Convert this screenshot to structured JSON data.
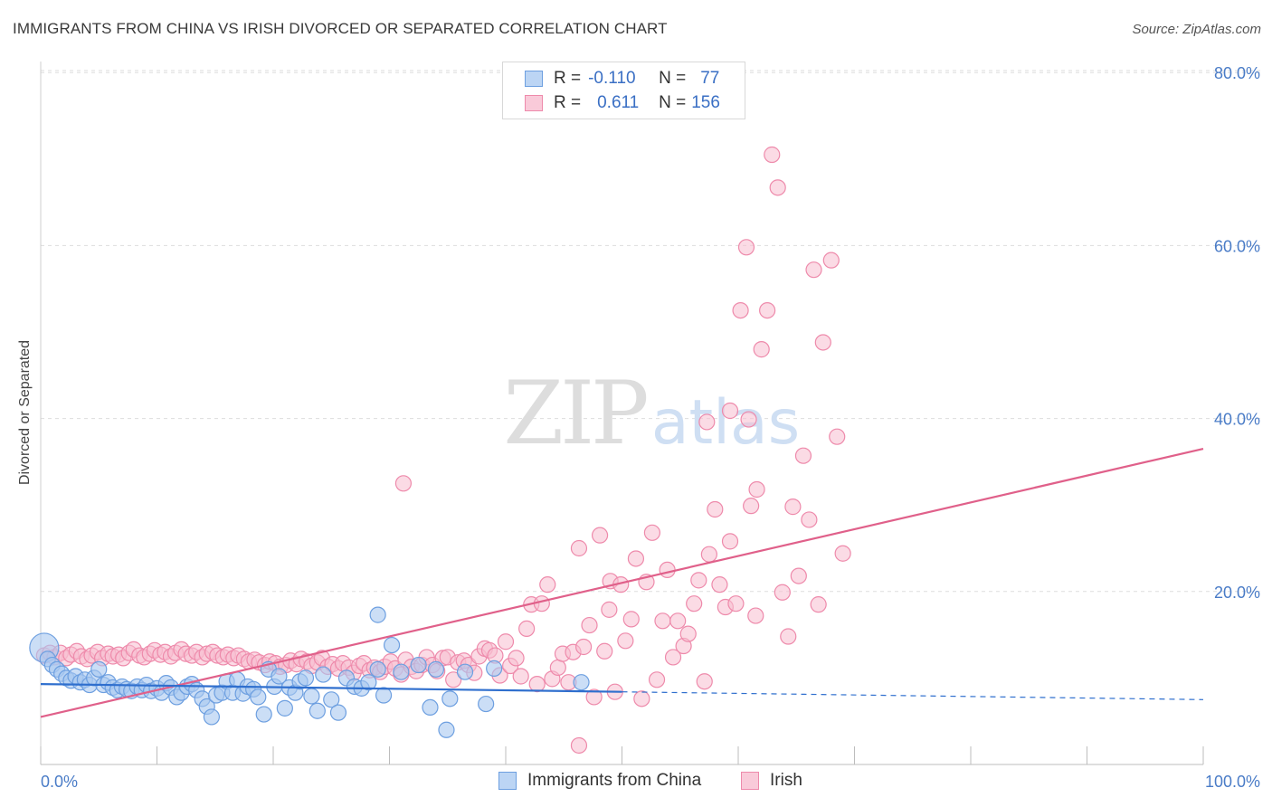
{
  "title": "IMMIGRANTS FROM CHINA VS IRISH DIVORCED OR SEPARATED CORRELATION CHART",
  "source": "Source: ZipAtlas.com",
  "watermark": {
    "zip": "ZIP",
    "atlas": "atlas"
  },
  "legend": {
    "rows": [
      {
        "r_label": "R =",
        "r_value": "-0.110",
        "n_label": "N =",
        "n_value": "77"
      },
      {
        "r_label": "R =",
        "r_value": "0.611",
        "n_label": "N =",
        "n_value": "156"
      }
    ]
  },
  "colors": {
    "china_fill": "#a9c8f0",
    "china_stroke": "#6d9fe0",
    "china_line": "#2f6fce",
    "irish_fill": "#f7bdd0",
    "irish_stroke": "#ee8aab",
    "irish_line": "#e0608a",
    "grid": "#dddddd",
    "axis_text": "#4a7cc7"
  },
  "chart_data": {
    "type": "scatter",
    "title": "IMMIGRANTS FROM CHINA VS IRISH DIVORCED OR SEPARATED CORRELATION CHART",
    "xlabel": "",
    "ylabel": "Divorced or Separated",
    "xlim": [
      0,
      100
    ],
    "ylim": [
      0,
      85
    ],
    "x_tick_labels": [
      "0.0%",
      "100.0%"
    ],
    "y_ticks": [
      20,
      40,
      60,
      80
    ],
    "y_tick_labels": [
      "20.0%",
      "40.0%",
      "60.0%",
      "80.0%"
    ],
    "grid": true,
    "legend_position": "bottom",
    "series": [
      {
        "name": "Immigrants from China",
        "r": -0.11,
        "n": 77,
        "trend": {
          "x": [
            0,
            100
          ],
          "y": [
            9.3,
            7.5
          ],
          "solid_until": 50
        },
        "points": [
          [
            0.3,
            13.5
          ],
          [
            0.6,
            12.2
          ],
          [
            1,
            11.5
          ],
          [
            1.4,
            11
          ],
          [
            1.8,
            10.5
          ],
          [
            2.2,
            10
          ],
          [
            2.6,
            9.7
          ],
          [
            3,
            10.2
          ],
          [
            3.4,
            9.5
          ],
          [
            3.8,
            9.8
          ],
          [
            4.2,
            9.2
          ],
          [
            4.6,
            10
          ],
          [
            5,
            11
          ],
          [
            5.4,
            9.2
          ],
          [
            5.8,
            9.5
          ],
          [
            6.2,
            8.9
          ],
          [
            6.6,
            8.6
          ],
          [
            7,
            9
          ],
          [
            7.4,
            8.7
          ],
          [
            7.8,
            8.5
          ],
          [
            8.3,
            9
          ],
          [
            8.7,
            8.6
          ],
          [
            9.1,
            9.2
          ],
          [
            9.5,
            8.5
          ],
          [
            10,
            8.8
          ],
          [
            10.4,
            8.3
          ],
          [
            10.8,
            9.4
          ],
          [
            11.2,
            8.9
          ],
          [
            11.7,
            7.8
          ],
          [
            12.1,
            8.3
          ],
          [
            12.6,
            9
          ],
          [
            13,
            9.3
          ],
          [
            13.4,
            8.6
          ],
          [
            13.9,
            7.6
          ],
          [
            14.3,
            6.7
          ],
          [
            14.7,
            5.5
          ],
          [
            15.1,
            8
          ],
          [
            15.6,
            8.3
          ],
          [
            16,
            9.6
          ],
          [
            16.5,
            8.3
          ],
          [
            16.9,
            9.8
          ],
          [
            17.4,
            8.2
          ],
          [
            17.8,
            9
          ],
          [
            18.3,
            8.7
          ],
          [
            18.7,
            7.8
          ],
          [
            19.2,
            5.8
          ],
          [
            19.6,
            11
          ],
          [
            20.1,
            9
          ],
          [
            20.5,
            10.2
          ],
          [
            21,
            6.5
          ],
          [
            21.4,
            8.9
          ],
          [
            21.9,
            8.3
          ],
          [
            22.3,
            9.6
          ],
          [
            22.8,
            10
          ],
          [
            23.3,
            7.9
          ],
          [
            23.8,
            6.2
          ],
          [
            24.3,
            10.4
          ],
          [
            25,
            7.5
          ],
          [
            25.6,
            6
          ],
          [
            26.3,
            10
          ],
          [
            27,
            9
          ],
          [
            27.6,
            8.8
          ],
          [
            28.2,
            9.5
          ],
          [
            29,
            11
          ],
          [
            29.5,
            8
          ],
          [
            30.2,
            13.8
          ],
          [
            31,
            10.7
          ],
          [
            32.5,
            11.5
          ],
          [
            33.5,
            6.6
          ],
          [
            34,
            11
          ],
          [
            34.9,
            4
          ],
          [
            35.2,
            7.6
          ],
          [
            36.5,
            10.7
          ],
          [
            38.3,
            7
          ],
          [
            39,
            11.1
          ],
          [
            29,
            17.3
          ],
          [
            46.5,
            9.5
          ]
        ]
      },
      {
        "name": "Irish",
        "r": 0.611,
        "n": 156,
        "trend": {
          "x": [
            0,
            100
          ],
          "y": [
            5.5,
            36.5
          ]
        },
        "points": [
          [
            0.3,
            12.6
          ],
          [
            0.8,
            12.9
          ],
          [
            1.2,
            12.4
          ],
          [
            1.7,
            12.9
          ],
          [
            2.2,
            12.3
          ],
          [
            2.6,
            12.7
          ],
          [
            3.1,
            13.1
          ],
          [
            3.5,
            12.5
          ],
          [
            4,
            12.2
          ],
          [
            4.4,
            12.6
          ],
          [
            4.9,
            13
          ],
          [
            5.3,
            12.3
          ],
          [
            5.8,
            12.8
          ],
          [
            6.2,
            12.5
          ],
          [
            6.7,
            12.7
          ],
          [
            7.1,
            12.3
          ],
          [
            7.6,
            12.9
          ],
          [
            8,
            13.3
          ],
          [
            8.5,
            12.6
          ],
          [
            8.9,
            12.4
          ],
          [
            9.4,
            12.8
          ],
          [
            9.8,
            13.2
          ],
          [
            10.3,
            12.7
          ],
          [
            10.7,
            13
          ],
          [
            11.2,
            12.5
          ],
          [
            11.6,
            12.9
          ],
          [
            12.1,
            13.3
          ],
          [
            12.5,
            12.8
          ],
          [
            13,
            12.6
          ],
          [
            13.4,
            13
          ],
          [
            13.9,
            12.4
          ],
          [
            14.3,
            12.8
          ],
          [
            14.8,
            13
          ],
          [
            15.2,
            12.6
          ],
          [
            15.7,
            12.4
          ],
          [
            16.1,
            12.7
          ],
          [
            16.6,
            12.3
          ],
          [
            17,
            12.6
          ],
          [
            17.5,
            12.2
          ],
          [
            17.9,
            11.9
          ],
          [
            18.4,
            12.1
          ],
          [
            18.8,
            11.8
          ],
          [
            19.3,
            11.5
          ],
          [
            19.7,
            11.9
          ],
          [
            20.2,
            11.7
          ],
          [
            20.6,
            11.3
          ],
          [
            21.1,
            11.5
          ],
          [
            21.5,
            12
          ],
          [
            22,
            11.6
          ],
          [
            22.4,
            12.2
          ],
          [
            22.9,
            11.9
          ],
          [
            23.3,
            11.4
          ],
          [
            23.8,
            11.8
          ],
          [
            24.2,
            12.3
          ],
          [
            24.7,
            11.3
          ],
          [
            25.1,
            11.6
          ],
          [
            25.6,
            11.1
          ],
          [
            26,
            11.7
          ],
          [
            26.5,
            11.2
          ],
          [
            26.9,
            10.6
          ],
          [
            27.4,
            11.4
          ],
          [
            27.8,
            11.7
          ],
          [
            28.3,
            10.9
          ],
          [
            28.7,
            11.2
          ],
          [
            29.2,
            10.7
          ],
          [
            29.6,
            11.3
          ],
          [
            30.1,
            11.9
          ],
          [
            30.5,
            11.1
          ],
          [
            31,
            10.4
          ],
          [
            31.4,
            12.1
          ],
          [
            31.9,
            11.3
          ],
          [
            32.3,
            10.8
          ],
          [
            32.8,
            11.5
          ],
          [
            33.2,
            12.4
          ],
          [
            33.7,
            11.5
          ],
          [
            34.1,
            10.8
          ],
          [
            34.6,
            12.3
          ],
          [
            35,
            12.4
          ],
          [
            35.5,
            9.8
          ],
          [
            35.9,
            11.8
          ],
          [
            36.4,
            12
          ],
          [
            36.8,
            11.5
          ],
          [
            37.3,
            10.6
          ],
          [
            37.7,
            12.5
          ],
          [
            38.2,
            13.4
          ],
          [
            38.6,
            13.2
          ],
          [
            39.1,
            12.6
          ],
          [
            39.5,
            10.3
          ],
          [
            40,
            14.2
          ],
          [
            40.4,
            11.4
          ],
          [
            40.9,
            12.3
          ],
          [
            41.3,
            10.2
          ],
          [
            41.8,
            15.7
          ],
          [
            42.2,
            18.5
          ],
          [
            42.7,
            9.3
          ],
          [
            43.1,
            18.6
          ],
          [
            43.6,
            20.8
          ],
          [
            44,
            9.9
          ],
          [
            44.5,
            11.2
          ],
          [
            44.9,
            12.8
          ],
          [
            45.4,
            9.5
          ],
          [
            45.8,
            13
          ],
          [
            46.3,
            25
          ],
          [
            46.7,
            13.6
          ],
          [
            47.2,
            16.1
          ],
          [
            47.6,
            7.8
          ],
          [
            48.1,
            26.5
          ],
          [
            48.5,
            13.1
          ],
          [
            49,
            21.2
          ],
          [
            49.4,
            8.4
          ],
          [
            49.9,
            20.8
          ],
          [
            50.3,
            14.3
          ],
          [
            50.8,
            16.8
          ],
          [
            51.2,
            23.8
          ],
          [
            51.7,
            7.6
          ],
          [
            52.1,
            21.1
          ],
          [
            52.6,
            26.8
          ],
          [
            53,
            9.8
          ],
          [
            53.5,
            16.6
          ],
          [
            53.9,
            22.5
          ],
          [
            54.4,
            12.4
          ],
          [
            54.8,
            16.6
          ],
          [
            55.3,
            13.7
          ],
          [
            55.7,
            15.1
          ],
          [
            56.2,
            18.6
          ],
          [
            56.6,
            21.3
          ],
          [
            57.1,
            9.6
          ],
          [
            57.5,
            24.3
          ],
          [
            58,
            29.5
          ],
          [
            58.4,
            20.8
          ],
          [
            58.9,
            18.2
          ],
          [
            59.3,
            25.8
          ],
          [
            59.8,
            18.6
          ],
          [
            60.2,
            52.5
          ],
          [
            60.7,
            59.8
          ],
          [
            61.1,
            29.9
          ],
          [
            61.6,
            31.8
          ],
          [
            62,
            48
          ],
          [
            62.5,
            52.5
          ],
          [
            62.9,
            70.5
          ],
          [
            63.4,
            66.7
          ],
          [
            63.8,
            19.9
          ],
          [
            64.3,
            14.8
          ],
          [
            64.7,
            29.8
          ],
          [
            65.2,
            21.8
          ],
          [
            65.6,
            35.7
          ],
          [
            66.1,
            28.3
          ],
          [
            66.5,
            57.2
          ],
          [
            66.9,
            18.5
          ],
          [
            67.3,
            48.8
          ],
          [
            68,
            58.3
          ],
          [
            68.5,
            37.9
          ],
          [
            69,
            24.4
          ],
          [
            57.3,
            39.6
          ],
          [
            59.3,
            40.9
          ],
          [
            60.9,
            39.9
          ],
          [
            61.5,
            17.2
          ],
          [
            46.3,
            2.2
          ],
          [
            31.2,
            32.5
          ],
          [
            48.9,
            17.9
          ]
        ]
      }
    ]
  },
  "bottom_legend": [
    {
      "label": "Immigrants from China"
    },
    {
      "label": "Irish"
    }
  ]
}
